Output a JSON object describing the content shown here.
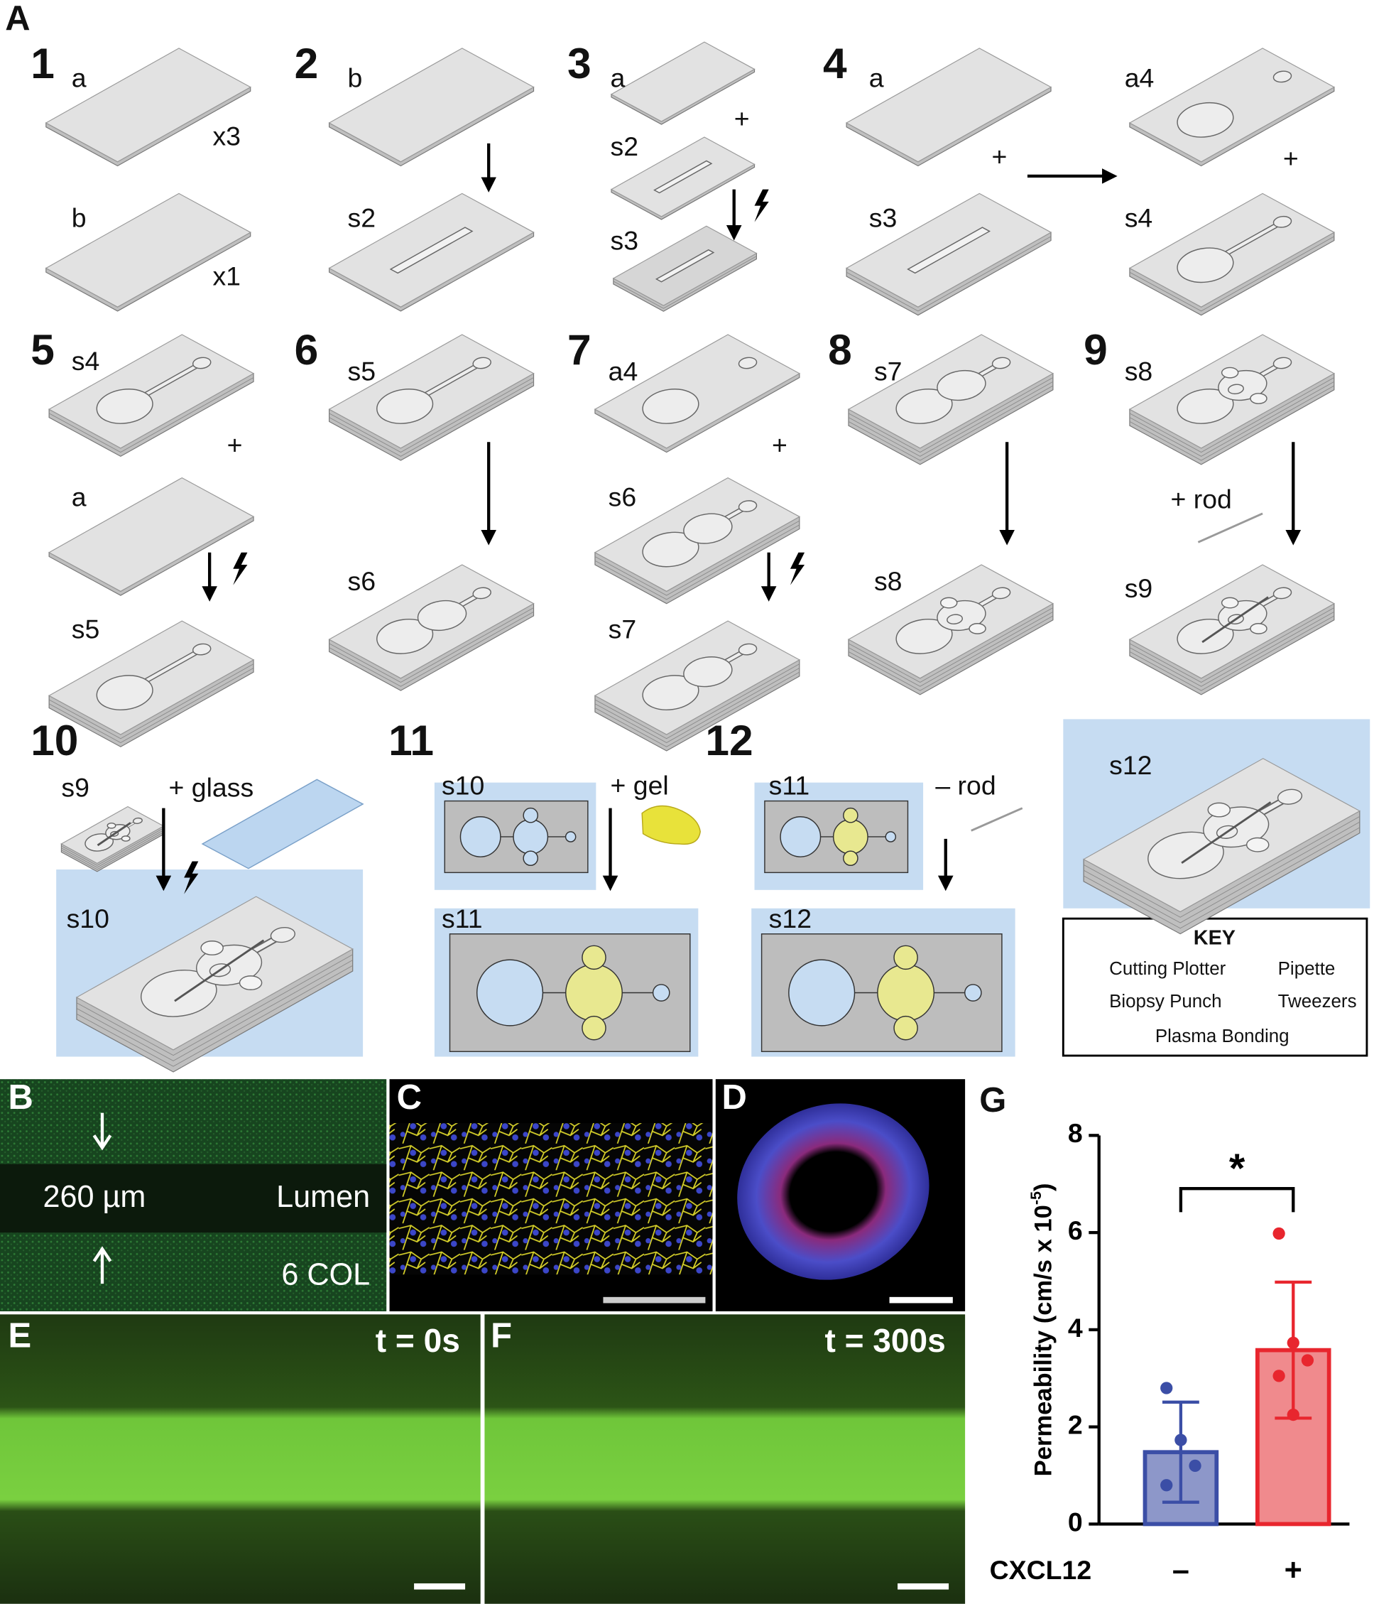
{
  "figure_label": "A",
  "steps": [
    {
      "number": "1",
      "labels": [
        "a",
        "x3",
        "b",
        "x1"
      ]
    },
    {
      "number": "2",
      "labels": [
        "b",
        "s2"
      ]
    },
    {
      "number": "3",
      "labels": [
        "a",
        "+",
        "s2",
        "s3"
      ]
    },
    {
      "number": "4",
      "labels": [
        "a",
        "+",
        "s3",
        "a4",
        "+",
        "s4"
      ]
    },
    {
      "number": "5",
      "labels": [
        "s4",
        "+",
        "a",
        "s5"
      ]
    },
    {
      "number": "6",
      "labels": [
        "s5",
        "s6"
      ]
    },
    {
      "number": "7",
      "labels": [
        "a4",
        "+",
        "s6",
        "s7"
      ]
    },
    {
      "number": "8",
      "labels": [
        "s7",
        "s8"
      ]
    },
    {
      "number": "9",
      "labels": [
        "s8",
        "+ rod",
        "s9"
      ]
    },
    {
      "number": "10",
      "labels": [
        "s9",
        "+ glass",
        "s10"
      ]
    },
    {
      "number": "11",
      "labels": [
        "s10",
        "+ gel",
        "s11"
      ]
    },
    {
      "number": "12",
      "labels": [
        "s11",
        "– rod",
        "s12",
        "s12"
      ]
    }
  ],
  "key": {
    "title": "KEY",
    "items": [
      "Cutting Plotter",
      "Pipette",
      "Biopsy Punch",
      "Tweezers",
      "Plasma Bonding"
    ]
  },
  "panels": {
    "B": {
      "label": "B",
      "texts": [
        "260 µm",
        "Lumen",
        "6 COL"
      ]
    },
    "C": {
      "label": "C"
    },
    "D": {
      "label": "D"
    },
    "E": {
      "label": "E",
      "texts": [
        "t = 0s"
      ]
    },
    "F": {
      "label": "F",
      "texts": [
        "t = 300s"
      ]
    },
    "G": {
      "label": "G"
    }
  },
  "chart_data": {
    "type": "bar",
    "y_label": {
      "text": "Permeability (cm/s x 10",
      "superscript": "-5",
      "close": ")"
    },
    "x_label": "CXCL12",
    "categories": [
      "–",
      "+"
    ],
    "values": [
      1.48,
      3.58
    ],
    "errors": [
      1.03,
      1.4
    ],
    "points": [
      [
        2.8,
        1.73,
        1.2,
        0.8
      ],
      [
        5.98,
        3.73,
        3.37,
        3.05,
        2.25
      ]
    ],
    "colors": [
      "#3b4ea6",
      "#e8262e"
    ],
    "fills": [
      "#8d97c9",
      "#f08a8d"
    ],
    "significance": "*",
    "ylim": [
      0,
      8
    ],
    "yticks": [
      0,
      2,
      4,
      6,
      8
    ]
  }
}
